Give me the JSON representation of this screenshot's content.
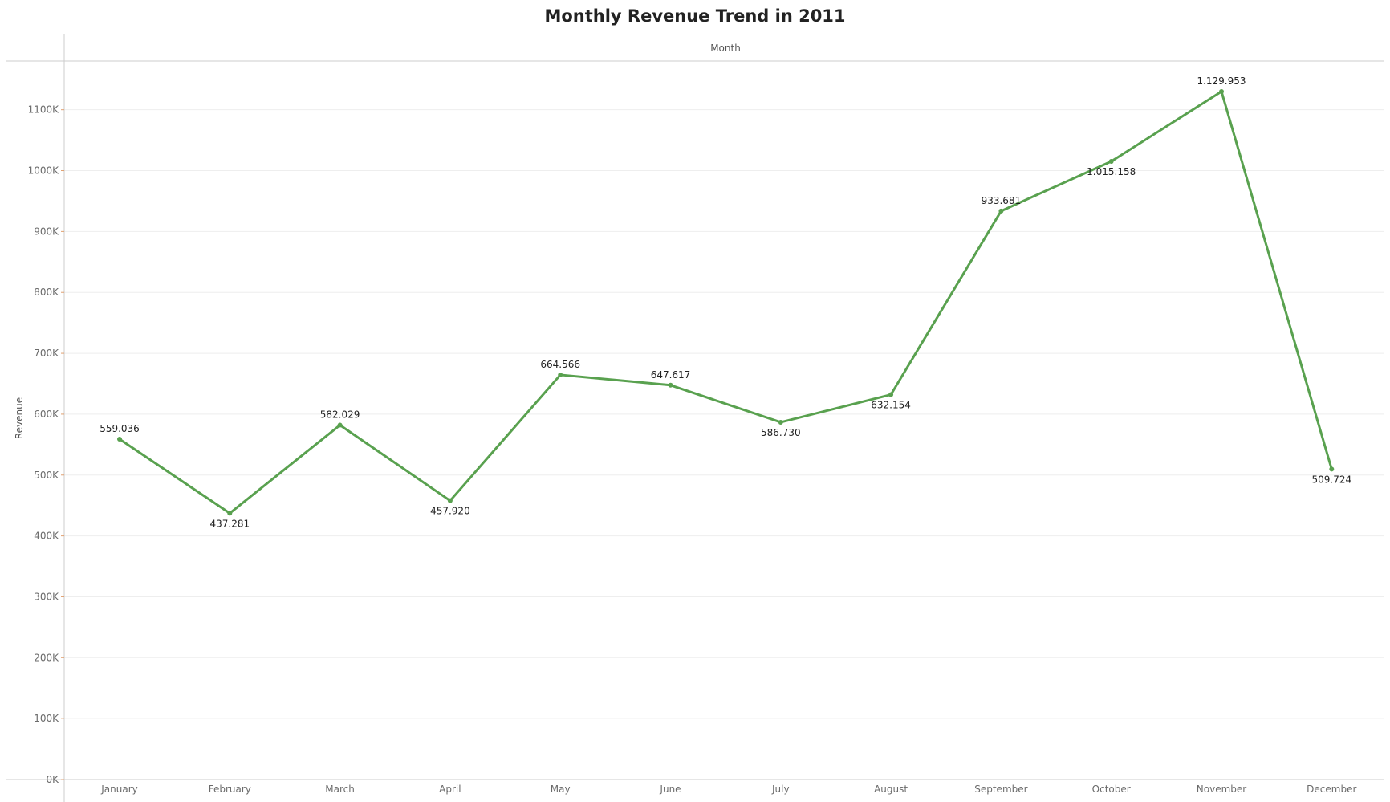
{
  "chart_data": {
    "type": "line",
    "title": "Monthly Revenue Trend in 2011",
    "xlabel": "Month",
    "ylabel": "Revenue",
    "categories": [
      "January",
      "February",
      "March",
      "April",
      "May",
      "June",
      "July",
      "August",
      "September",
      "October",
      "November",
      "December"
    ],
    "series": [
      {
        "values": [
          559036,
          437281,
          582029,
          457920,
          664566,
          647617,
          586730,
          632154,
          933681,
          1015158,
          1129953,
          509724
        ],
        "data_labels": [
          "559.036",
          "437.281",
          "582.029",
          "457.920",
          "664.566",
          "647.617",
          "586.730",
          "632.154",
          "933.681",
          "1.015.158",
          "1.129.953",
          "509.724"
        ],
        "color": "#59a14f"
      }
    ],
    "ylim": [
      0,
      1180000
    ],
    "yticks": [
      0,
      100000,
      200000,
      300000,
      400000,
      500000,
      600000,
      700000,
      800000,
      900000,
      1000000,
      1100000
    ],
    "ytick_labels": [
      "0K",
      "100K",
      "200K",
      "300K",
      "400K",
      "500K",
      "600K",
      "700K",
      "800K",
      "900K",
      "1000K",
      "1100K"
    ],
    "grid": true,
    "legend": "none"
  }
}
